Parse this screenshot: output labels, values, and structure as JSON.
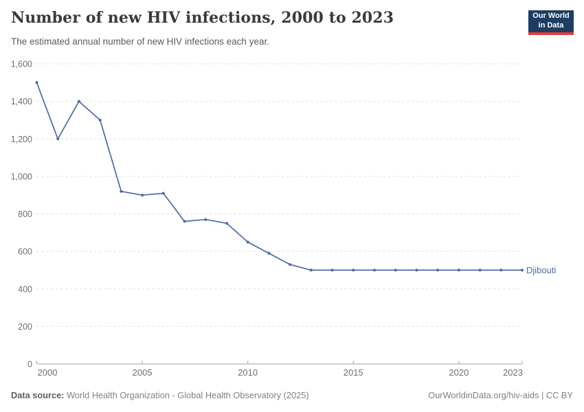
{
  "header": {
    "title": "Number of new HIV infections, 2000 to 2023",
    "subtitle": "The estimated annual number of new HIV infections each year.",
    "logo": {
      "line1": "Our World",
      "line2": "in Data"
    }
  },
  "chart_data": {
    "type": "line",
    "title": "Number of new HIV infections, 2000 to 2023",
    "x": [
      2000,
      2001,
      2002,
      2003,
      2004,
      2005,
      2006,
      2007,
      2008,
      2009,
      2010,
      2011,
      2012,
      2013,
      2014,
      2015,
      2016,
      2017,
      2018,
      2019,
      2020,
      2021,
      2022,
      2023
    ],
    "series": [
      {
        "name": "Djibouti",
        "color": "#4a69a8",
        "values": [
          1500,
          1200,
          1400,
          1300,
          920,
          900,
          910,
          760,
          770,
          750,
          650,
          590,
          530,
          500,
          500,
          500,
          500,
          500,
          500,
          500,
          500,
          500,
          500,
          500
        ]
      }
    ],
    "xlabel": "",
    "ylabel": "",
    "ylim": [
      0,
      1600
    ],
    "xlim": [
      2000,
      2023
    ],
    "y_ticks": [
      0,
      200,
      400,
      600,
      800,
      1000,
      1200,
      1400,
      1600
    ],
    "y_tick_labels": [
      "0",
      "200",
      "400",
      "600",
      "800",
      "1,000",
      "1,200",
      "1,400",
      "1,600"
    ],
    "x_ticks": [
      2000,
      2005,
      2010,
      2015,
      2020,
      2023
    ],
    "x_tick_labels": [
      "2000",
      "2005",
      "2010",
      "2015",
      "2020",
      "2023"
    ],
    "grid": "horizontal-dashed",
    "legend_position": "end-of-line-label",
    "marker": "dot"
  },
  "footer": {
    "datasource_label": "Data source:",
    "datasource_value": " World Health Organization - Global Health Observatory (2025)",
    "attribution": "OurWorldinData.org/hiv-aids | CC BY"
  },
  "colors": {
    "line": "#4a69a8",
    "grid": "#dcdcdc",
    "axis": "#a1a1a1",
    "tick_text": "#6e6e6e",
    "title_text": "#3a3a3a",
    "logo_bg": "#1d3d63",
    "logo_accent": "#e03e3e"
  }
}
